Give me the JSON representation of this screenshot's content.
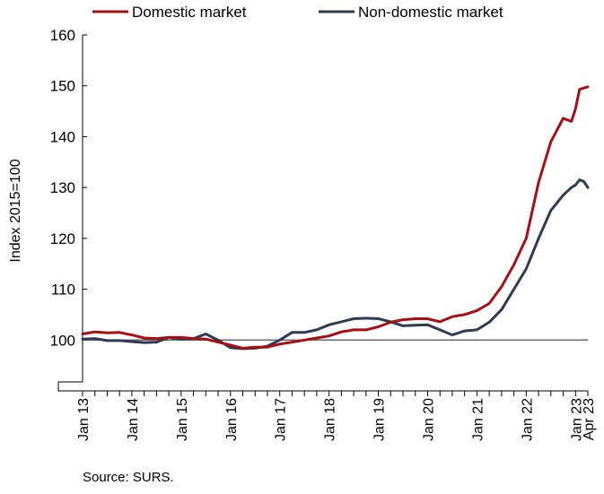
{
  "chart_data": {
    "type": "line",
    "title": "",
    "ylabel": "Index 2015=100",
    "xlabel": "",
    "ylim": [
      90,
      160
    ],
    "y_axis_break": true,
    "yticks": [
      "160",
      "150",
      "140",
      "130",
      "120",
      "110",
      "100"
    ],
    "x_tick_labels": [
      "Jan 13",
      "Jan 14",
      "Jan 15",
      "Jan 16",
      "Jan 17",
      "Jan 18",
      "Jan 19",
      "Jan 20",
      "Jan 21",
      "Jan 22",
      "Jan 23",
      "Apr 23"
    ],
    "x_start": "Jan 13",
    "x_end": "Apr 23",
    "legend_position": "top",
    "reference_line": 100,
    "series": [
      {
        "name": "Domestic market",
        "color": "#a50f15",
        "points": [
          [
            "Jan 13",
            101.2
          ],
          [
            "Apr 13",
            101.6
          ],
          [
            "Jul 13",
            101.4
          ],
          [
            "Oct 13",
            101.5
          ],
          [
            "Jan 14",
            101.0
          ],
          [
            "Apr 14",
            100.4
          ],
          [
            "Jul 14",
            100.3
          ],
          [
            "Oct 14",
            100.5
          ],
          [
            "Jan 15",
            100.5
          ],
          [
            "Apr 15",
            100.3
          ],
          [
            "Jul 15",
            100.2
          ],
          [
            "Oct 15",
            99.6
          ],
          [
            "Jan 16",
            99.0
          ],
          [
            "Apr 16",
            98.4
          ],
          [
            "Jul 16",
            98.6
          ],
          [
            "Oct 16",
            98.6
          ],
          [
            "Jan 17",
            99.2
          ],
          [
            "Apr 17",
            99.6
          ],
          [
            "Jul 17",
            100.0
          ],
          [
            "Oct 17",
            100.4
          ],
          [
            "Jan 18",
            100.8
          ],
          [
            "Apr 18",
            101.6
          ],
          [
            "Jul 18",
            102.0
          ],
          [
            "Oct 18",
            102.0
          ],
          [
            "Jan 19",
            102.6
          ],
          [
            "Apr 19",
            103.5
          ],
          [
            "Jul 19",
            104.0
          ],
          [
            "Oct 19",
            104.2
          ],
          [
            "Jan 20",
            104.2
          ],
          [
            "Apr 20",
            103.6
          ],
          [
            "Jul 20",
            104.6
          ],
          [
            "Oct 20",
            105.0
          ],
          [
            "Jan 21",
            105.8
          ],
          [
            "Apr 21",
            107.2
          ],
          [
            "Jul 21",
            110.5
          ],
          [
            "Oct 21",
            114.8
          ],
          [
            "Jan 22",
            120.0
          ],
          [
            "Apr 22",
            131.0
          ],
          [
            "Jul 22",
            139.0
          ],
          [
            "Oct 22",
            143.6
          ],
          [
            "Dec 22",
            143.0
          ],
          [
            "Jan 23",
            145.5
          ],
          [
            "Feb 23",
            149.3
          ],
          [
            "Apr 23",
            149.8
          ]
        ]
      },
      {
        "name": "Non-domestic market",
        "color": "#2f3b52",
        "points": [
          [
            "Jan 13",
            100.2
          ],
          [
            "Apr 13",
            100.3
          ],
          [
            "Jul 13",
            99.9
          ],
          [
            "Oct 13",
            99.9
          ],
          [
            "Jan 14",
            99.7
          ],
          [
            "Apr 14",
            99.5
          ],
          [
            "Jul 14",
            99.6
          ],
          [
            "Oct 14",
            100.5
          ],
          [
            "Jan 15",
            100.2
          ],
          [
            "Apr 15",
            100.3
          ],
          [
            "Jul 15",
            101.2
          ],
          [
            "Oct 15",
            100.0
          ],
          [
            "Jan 16",
            98.5
          ],
          [
            "Apr 16",
            98.3
          ],
          [
            "Jul 16",
            98.4
          ],
          [
            "Oct 16",
            98.8
          ],
          [
            "Jan 17",
            100.0
          ],
          [
            "Apr 17",
            101.5
          ],
          [
            "Jul 17",
            101.5
          ],
          [
            "Oct 17",
            102.0
          ],
          [
            "Jan 18",
            103.0
          ],
          [
            "Apr 18",
            103.6
          ],
          [
            "Jul 18",
            104.2
          ],
          [
            "Oct 18",
            104.3
          ],
          [
            "Jan 19",
            104.2
          ],
          [
            "Apr 19",
            103.6
          ],
          [
            "Jul 19",
            102.8
          ],
          [
            "Oct 19",
            102.9
          ],
          [
            "Jan 20",
            103.0
          ],
          [
            "Apr 20",
            102.0
          ],
          [
            "Jul 20",
            101.0
          ],
          [
            "Oct 20",
            101.8
          ],
          [
            "Jan 21",
            102.0
          ],
          [
            "Apr 21",
            103.5
          ],
          [
            "Jul 21",
            106.0
          ],
          [
            "Oct 21",
            110.0
          ],
          [
            "Jan 22",
            114.0
          ],
          [
            "Apr 22",
            120.0
          ],
          [
            "Jul 22",
            125.5
          ],
          [
            "Oct 22",
            128.5
          ],
          [
            "Dec 22",
            130.0
          ],
          [
            "Jan 23",
            130.5
          ],
          [
            "Feb 23",
            131.5
          ],
          [
            "Mar 23",
            131.2
          ],
          [
            "Apr 23",
            130.0
          ]
        ]
      }
    ]
  },
  "footer": {
    "source": "Source: SURS."
  }
}
